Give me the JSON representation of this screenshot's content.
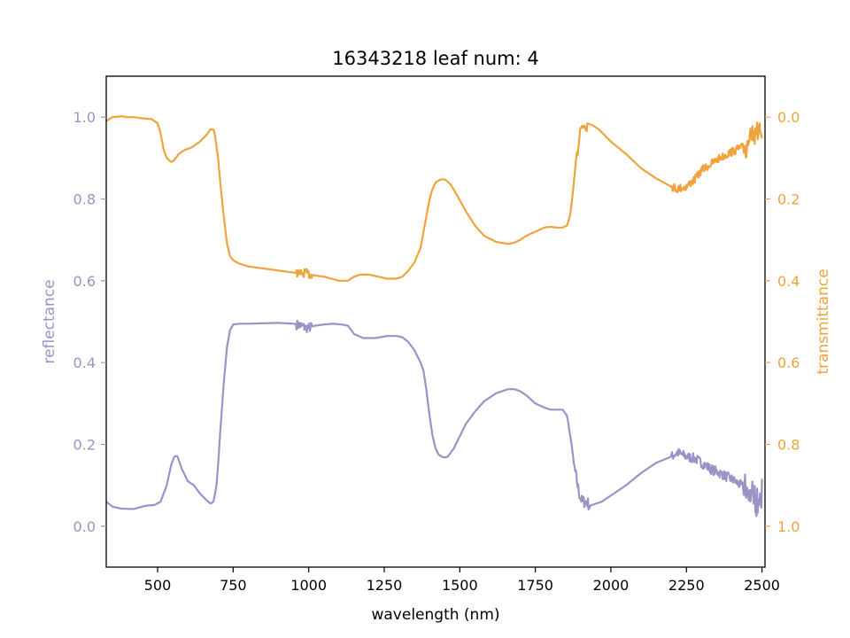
{
  "chart_data": {
    "type": "line",
    "title": "16343218 leaf num: 4",
    "xlabel": "wavelength (nm)",
    "ylabel_left": "reflectance",
    "ylabel_right": "transmittance",
    "xlim": [
      330,
      2510
    ],
    "ylim_left": [
      -0.1,
      1.1
    ],
    "ylim_right": [
      1.1,
      -0.1
    ],
    "right_axis_inverted": true,
    "grid": false,
    "x_ticks": [
      500,
      750,
      1000,
      1250,
      1500,
      1750,
      2000,
      2250,
      2500
    ],
    "x_tick_labels": [
      "500",
      "750",
      "1000",
      "1250",
      "1500",
      "1750",
      "2000",
      "2250",
      "2500"
    ],
    "y_left_ticks": [
      0.0,
      0.2,
      0.4,
      0.6,
      0.8,
      1.0
    ],
    "y_left_tick_labels": [
      "0.0",
      "0.2",
      "0.4",
      "0.6",
      "0.8",
      "1.0"
    ],
    "y_right_ticks": [
      0.0,
      0.2,
      0.4,
      0.6,
      0.8,
      1.0
    ],
    "y_right_tick_labels": [
      "0.0",
      "0.2",
      "0.4",
      "0.6",
      "0.8",
      "1.0"
    ],
    "colors": {
      "reflectance": "#9a93c6",
      "transmittance": "#f0a33c",
      "left_axis_text": "#9a93c6",
      "right_axis_text": "#f0a33c"
    },
    "series": [
      {
        "axis": "left",
        "color": "#9a93c6",
        "x": [
          330,
          350,
          380,
          420,
          460,
          490,
          510,
          530,
          545,
          555,
          565,
          580,
          600,
          620,
          640,
          660,
          675,
          685,
          695,
          700,
          710,
          720,
          730,
          740,
          750,
          770,
          800,
          850,
          900,
          950,
          975,
          990,
          1000,
          1020,
          1050,
          1080,
          1110,
          1130,
          1150,
          1180,
          1220,
          1260,
          1290,
          1310,
          1330,
          1350,
          1370,
          1380,
          1390,
          1400,
          1410,
          1420,
          1430,
          1440,
          1450,
          1460,
          1470,
          1480,
          1500,
          1520,
          1550,
          1580,
          1620,
          1660,
          1680,
          1700,
          1720,
          1750,
          1780,
          1800,
          1820,
          1840,
          1855,
          1870,
          1880,
          1890,
          1895,
          1900,
          1905,
          1910,
          1920,
          1930,
          1950,
          1970,
          2000,
          2050,
          2100,
          2150,
          2200,
          2220,
          2250,
          2280,
          2300,
          2330,
          2360,
          2400,
          2430,
          2450,
          2470,
          2480,
          2490,
          2495,
          2500
        ],
        "y": [
          0.06,
          0.048,
          0.043,
          0.042,
          0.05,
          0.052,
          0.06,
          0.1,
          0.15,
          0.17,
          0.172,
          0.14,
          0.11,
          0.1,
          0.08,
          0.065,
          0.055,
          0.06,
          0.1,
          0.15,
          0.26,
          0.36,
          0.44,
          0.48,
          0.493,
          0.495,
          0.495,
          0.496,
          0.497,
          0.495,
          0.49,
          0.485,
          0.485,
          0.49,
          0.493,
          0.495,
          0.493,
          0.49,
          0.47,
          0.46,
          0.46,
          0.465,
          0.465,
          0.462,
          0.45,
          0.43,
          0.4,
          0.38,
          0.33,
          0.27,
          0.22,
          0.19,
          0.175,
          0.17,
          0.168,
          0.17,
          0.18,
          0.19,
          0.22,
          0.25,
          0.28,
          0.305,
          0.325,
          0.335,
          0.335,
          0.33,
          0.32,
          0.3,
          0.29,
          0.285,
          0.285,
          0.285,
          0.27,
          0.2,
          0.14,
          0.1,
          0.08,
          0.07,
          0.06,
          0.06,
          0.06,
          0.05,
          0.055,
          0.06,
          0.075,
          0.1,
          0.13,
          0.155,
          0.17,
          0.18,
          0.17,
          0.165,
          0.155,
          0.14,
          0.13,
          0.115,
          0.1,
          0.09,
          0.075,
          0.065,
          0.06,
          0.06,
          0.08
        ],
        "noise": [
          {
            "from": 960,
            "to": 1010,
            "amp": 0.012
          },
          {
            "from": 1880,
            "to": 1930,
            "amp": 0.015
          },
          {
            "from": 2200,
            "to": 2500,
            "amp": 0.012
          },
          {
            "from": 2440,
            "to": 2500,
            "amp": 0.03
          }
        ]
      },
      {
        "axis": "right",
        "color": "#f0a33c",
        "x": [
          330,
          350,
          380,
          400,
          420,
          450,
          480,
          500,
          510,
          520,
          530,
          545,
          555,
          570,
          590,
          610,
          640,
          660,
          675,
          685,
          690,
          700,
          710,
          720,
          730,
          740,
          750,
          770,
          800,
          850,
          900,
          950,
          975,
          990,
          1000,
          1050,
          1100,
          1130,
          1150,
          1170,
          1200,
          1230,
          1260,
          1290,
          1310,
          1330,
          1350,
          1370,
          1380,
          1390,
          1400,
          1410,
          1420,
          1430,
          1440,
          1450,
          1460,
          1470,
          1490,
          1520,
          1550,
          1580,
          1620,
          1660,
          1680,
          1700,
          1720,
          1750,
          1780,
          1800,
          1820,
          1840,
          1855,
          1865,
          1875,
          1885,
          1895,
          1900,
          1905,
          1910,
          1920,
          1940,
          1960,
          1980,
          2000,
          2050,
          2100,
          2150,
          2200,
          2220,
          2250,
          2280,
          2300,
          2330,
          2360,
          2400,
          2430,
          2450,
          2470,
          2480,
          2490,
          2495,
          2500
        ],
        "y": [
          0.01,
          0.0,
          -0.002,
          0.0,
          0.0,
          0.003,
          0.005,
          0.015,
          0.04,
          0.08,
          0.1,
          0.11,
          0.105,
          0.09,
          0.08,
          0.075,
          0.06,
          0.045,
          0.03,
          0.03,
          0.045,
          0.1,
          0.18,
          0.25,
          0.31,
          0.34,
          0.35,
          0.358,
          0.365,
          0.37,
          0.375,
          0.38,
          0.383,
          0.38,
          0.385,
          0.39,
          0.4,
          0.4,
          0.39,
          0.385,
          0.385,
          0.39,
          0.395,
          0.395,
          0.39,
          0.375,
          0.355,
          0.32,
          0.28,
          0.24,
          0.2,
          0.175,
          0.16,
          0.155,
          0.152,
          0.152,
          0.158,
          0.165,
          0.19,
          0.23,
          0.265,
          0.29,
          0.305,
          0.31,
          0.307,
          0.3,
          0.29,
          0.28,
          0.27,
          0.268,
          0.27,
          0.27,
          0.265,
          0.24,
          0.18,
          0.1,
          0.05,
          0.03,
          0.02,
          0.015,
          0.015,
          0.02,
          0.03,
          0.045,
          0.06,
          0.09,
          0.125,
          0.15,
          0.17,
          0.175,
          0.17,
          0.15,
          0.13,
          0.115,
          0.1,
          0.085,
          0.075,
          0.07,
          0.05,
          0.045,
          0.03,
          0.02,
          0.03
        ],
        "noise": [
          {
            "from": 960,
            "to": 1010,
            "amp": 0.01
          },
          {
            "from": 1890,
            "to": 1920,
            "amp": 0.02
          },
          {
            "from": 2200,
            "to": 2500,
            "amp": 0.01
          },
          {
            "from": 2440,
            "to": 2500,
            "amp": 0.025
          }
        ]
      }
    ]
  }
}
